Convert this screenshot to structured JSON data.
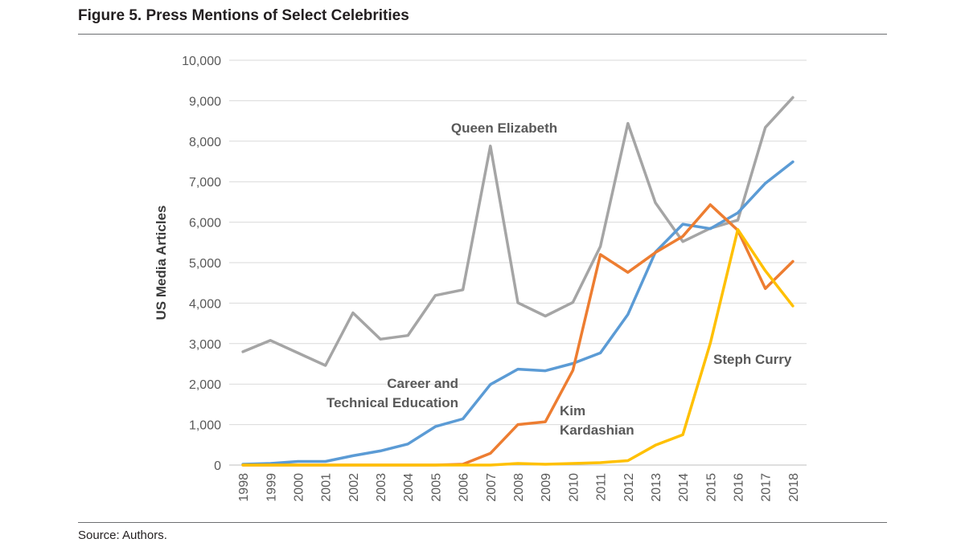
{
  "figure": {
    "title": "Figure 5. Press Mentions of Select Celebrities",
    "source": "Source: Authors."
  },
  "chart_data": {
    "type": "line",
    "ylabel": "US Media Articles",
    "xlabel": "",
    "ylim": [
      0,
      10000
    ],
    "yticks": [
      0,
      1000,
      2000,
      3000,
      4000,
      5000,
      6000,
      7000,
      8000,
      9000,
      10000
    ],
    "ytick_labels": [
      "0",
      "1,000",
      "2,000",
      "3,000",
      "4,000",
      "5,000",
      "6,000",
      "7,000",
      "8,000",
      "9,000",
      "10,000"
    ],
    "grid": true,
    "x": [
      "1998",
      "1999",
      "2000",
      "2001",
      "2002",
      "2003",
      "2004",
      "2005",
      "2006",
      "2007",
      "2008",
      "2009",
      "2010",
      "2011",
      "2012",
      "2013",
      "2014",
      "2015",
      "2016",
      "2017",
      "2018"
    ],
    "series": [
      {
        "name": "Queen Elizabeth",
        "color": "#a5a5a5",
        "values": [
          2800,
          3080,
          2770,
          2460,
          3760,
          3110,
          3200,
          4190,
          4330,
          7880,
          4010,
          3680,
          4020,
          5400,
          8440,
          6480,
          5520,
          5850,
          6050,
          8340,
          9080
        ]
      },
      {
        "name": "Career and Technical Education",
        "label_lines": [
          "Career and",
          "Technical Education"
        ],
        "color": "#5b9bd5",
        "values": [
          20,
          40,
          90,
          90,
          230,
          350,
          520,
          950,
          1140,
          1990,
          2370,
          2330,
          2510,
          2770,
          3720,
          5260,
          5950,
          5840,
          6230,
          6960,
          7490
        ]
      },
      {
        "name": "Kim Kardashian",
        "label_lines": [
          "Kim",
          "Kardashian"
        ],
        "color": "#ed7d31",
        "values": [
          0,
          0,
          0,
          0,
          0,
          0,
          0,
          0,
          20,
          290,
          1000,
          1070,
          2340,
          5200,
          4760,
          5250,
          5650,
          6430,
          5800,
          4360,
          5030
        ]
      },
      {
        "name": "Steph Curry",
        "color": "#ffc000",
        "values": [
          0,
          0,
          0,
          0,
          0,
          0,
          0,
          0,
          0,
          0,
          40,
          20,
          40,
          60,
          110,
          490,
          750,
          3010,
          5820,
          4800,
          3930
        ]
      }
    ]
  }
}
